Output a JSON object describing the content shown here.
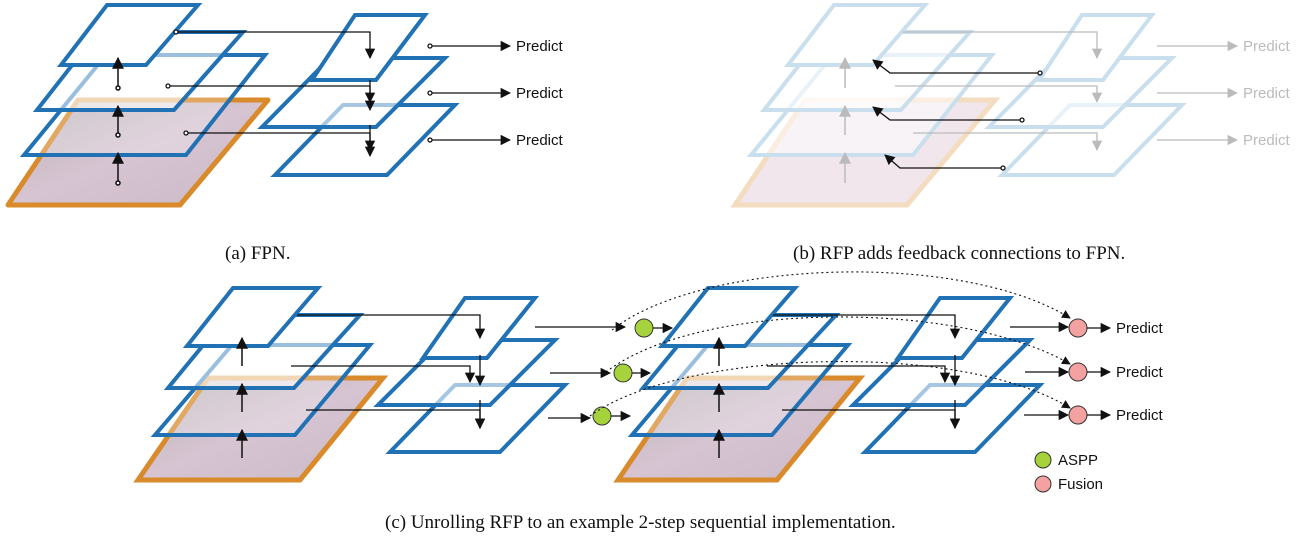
{
  "captions": {
    "a": "(a) FPN.",
    "b": "(b) RFP adds feedback connections to FPN.",
    "c": "(c) Unrolling RFP to an example 2-step sequential implementation."
  },
  "labels": {
    "predict": "Predict",
    "aspp": "ASPP",
    "fusion": "Fusion"
  },
  "colors": {
    "layer_stroke": "#2171b5",
    "layer_faded": "#c9dfee",
    "image_frame": "#d98a2b",
    "aspp": "#a6d23c",
    "fusion": "#f4a1a1",
    "arrow": "#111111",
    "arrow_faded": "#bbbbbb"
  }
}
